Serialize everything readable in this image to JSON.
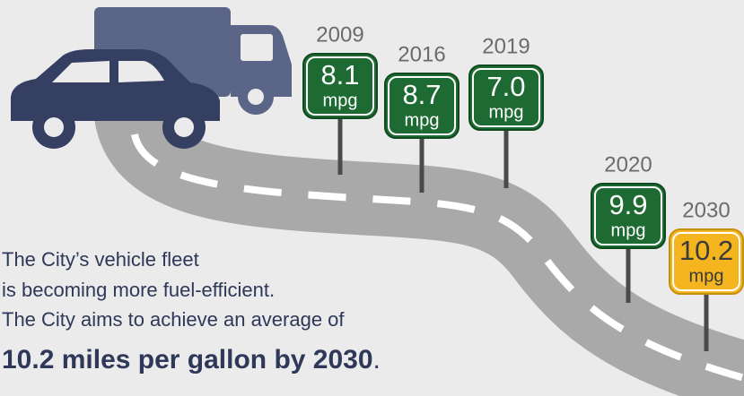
{
  "signs": [
    {
      "year": "2009",
      "value": "8.1",
      "unit": "mpg",
      "color": "#1d6b33"
    },
    {
      "year": "2016",
      "value": "8.7",
      "unit": "mpg",
      "color": "#1d6b33"
    },
    {
      "year": "2019",
      "value": "7.0",
      "unit": "mpg",
      "color": "#1d6b33"
    },
    {
      "year": "2020",
      "value": "9.9",
      "unit": "mpg",
      "color": "#1d6b33"
    },
    {
      "year": "2030",
      "value": "10.2",
      "unit": "mpg",
      "color": "#f4b51e"
    }
  ],
  "text": {
    "lines": [
      "The City’s vehicle fleet",
      "is becoming more fuel-efficient.",
      "The City aims to achieve an average of"
    ],
    "highlight": "10.2 miles per gallon by 2030",
    "period": "."
  }
}
